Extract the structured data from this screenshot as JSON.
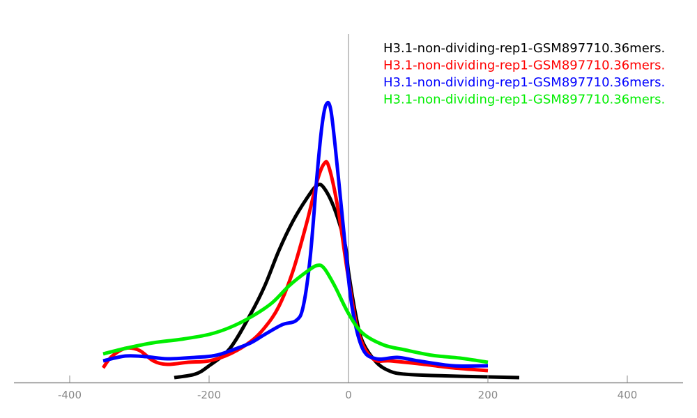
{
  "chart_data": {
    "type": "line",
    "title": "",
    "xlabel": "",
    "ylabel": "",
    "xlim": [
      -480,
      480
    ],
    "ylim": [
      0,
      500
    ],
    "xticks": [
      -400,
      -200,
      0,
      200,
      400
    ],
    "xtick_labels": [
      "-400",
      "-200",
      "0",
      "200",
      "400"
    ],
    "grid": false,
    "legend_position": "top-right",
    "series": [
      {
        "name": "H3.1-non-dividing-rep1-GSM897710.36mers.",
        "color": "#000000",
        "x": [
          -250,
          -220,
          -200,
          -170,
          -140,
          -120,
          -100,
          -80,
          -60,
          -45,
          -35,
          -20,
          -5,
          0,
          10,
          20,
          40,
          60,
          80,
          120,
          200,
          245
        ],
        "y": [
          7,
          12,
          24,
          49,
          99,
          139,
          189,
          231,
          264,
          283,
          279,
          249,
          199,
          159,
          99,
          59,
          29,
          16,
          12,
          10,
          8,
          7
        ]
      },
      {
        "name": "H3.1-non-dividing-rep1-GSM897710.36mers.",
        "color": "#ff0000",
        "x": [
          -352,
          -340,
          -320,
          -300,
          -280,
          -260,
          -230,
          -200,
          -170,
          -140,
          -120,
          -100,
          -80,
          -60,
          -45,
          -35,
          -28,
          -15,
          0,
          15,
          35,
          60,
          100,
          150,
          200
        ],
        "y": [
          21,
          37,
          49,
          46,
          31,
          26,
          29,
          31,
          41,
          59,
          79,
          109,
          159,
          229,
          289,
          314,
          309,
          249,
          149,
          69,
          34,
          31,
          27,
          21,
          17
        ]
      },
      {
        "name": "H3.1-non-dividing-rep1-GSM897710.36mers.",
        "color": "#0000ff",
        "x": [
          -352,
          -320,
          -290,
          -260,
          -220,
          -190,
          -160,
          -140,
          -120,
          -95,
          -75,
          -65,
          -55,
          -45,
          -38,
          -32,
          -25,
          -15,
          -5,
          5,
          20,
          40,
          70,
          100,
          150,
          200
        ],
        "y": [
          31,
          38,
          37,
          34,
          36,
          39,
          49,
          57,
          69,
          83,
          89,
          109,
          179,
          299,
          369,
          399,
          389,
          299,
          199,
          109,
          49,
          34,
          36,
          31,
          24,
          24
        ]
      },
      {
        "name": "H3.1-non-dividing-rep1-GSM897710.36mers.",
        "color": "#00ee00",
        "x": [
          -352,
          -320,
          -280,
          -240,
          -200,
          -170,
          -140,
          -110,
          -85,
          -60,
          -45,
          -35,
          -20,
          0,
          20,
          50,
          80,
          120,
          160,
          200
        ],
        "y": [
          41,
          49,
          57,
          62,
          69,
          79,
          94,
          114,
          139,
          159,
          168,
          164,
          139,
          99,
          71,
          54,
          47,
          39,
          35,
          29
        ]
      }
    ]
  }
}
